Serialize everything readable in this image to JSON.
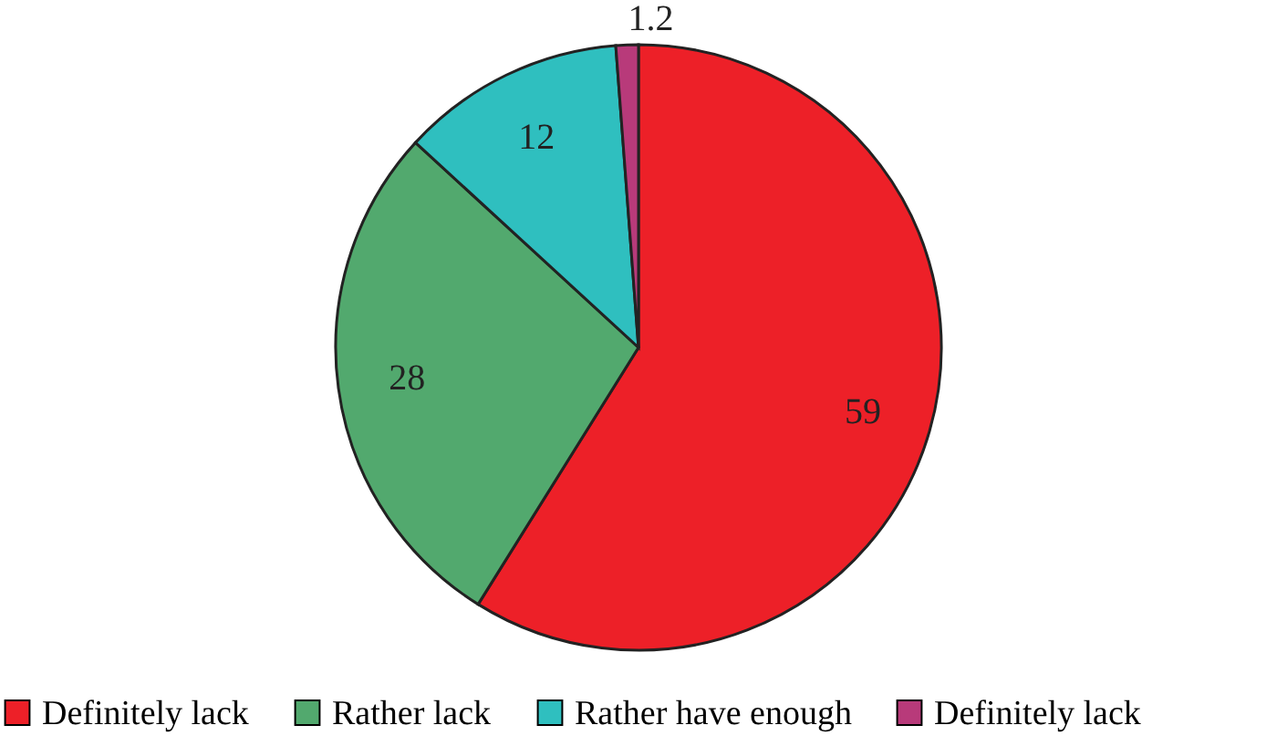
{
  "chart_data": {
    "type": "pie",
    "categories": [
      "Definitely lack",
      "Rather lack",
      "Rather have enough",
      "Definitely lack"
    ],
    "values": [
      59,
      28,
      12,
      1.2
    ],
    "colors": [
      "#ed2028",
      "#52a96e",
      "#2fbfbf",
      "#b83a7a"
    ],
    "data_labels": true,
    "legend": "bottom"
  }
}
